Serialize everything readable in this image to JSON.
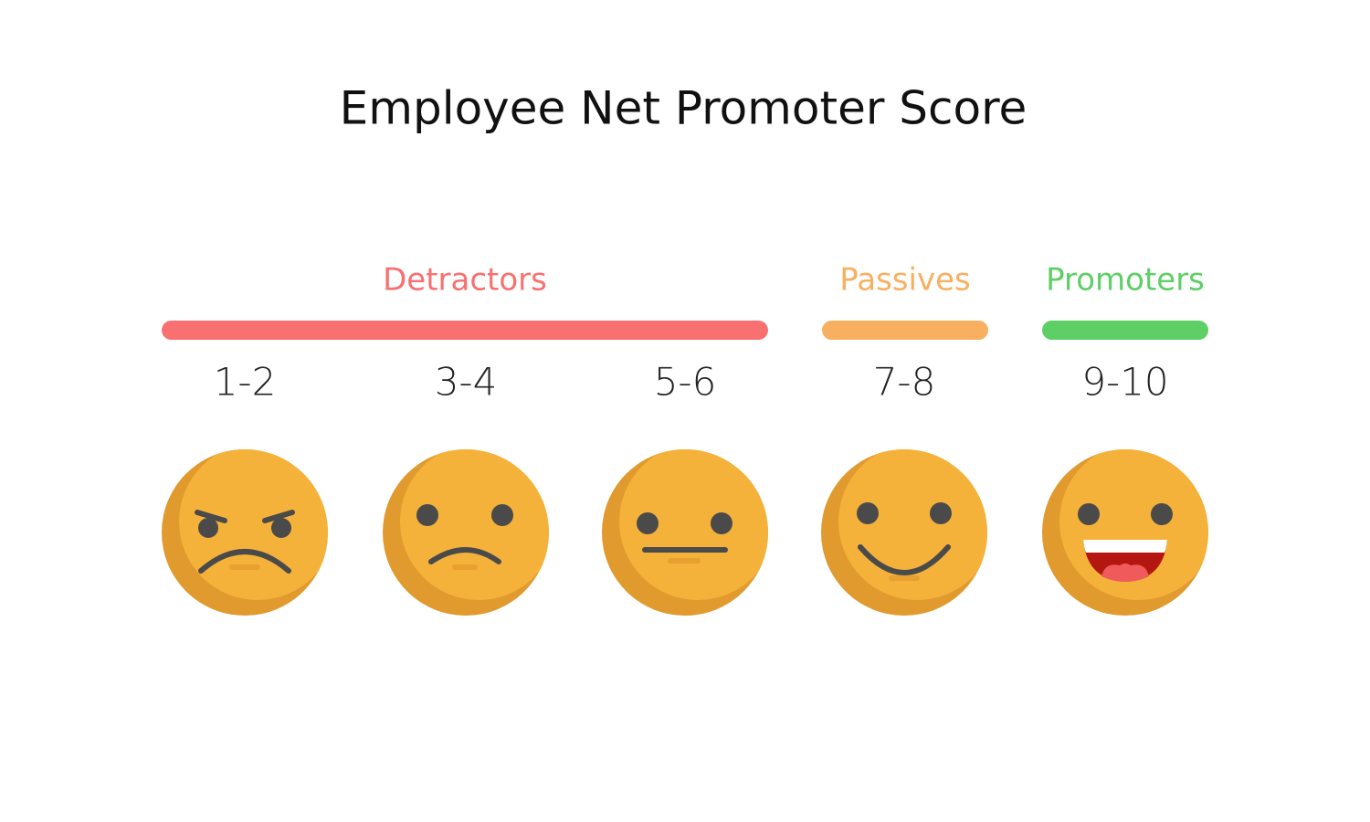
{
  "title": "Employee Net Promoter Score",
  "groups": [
    {
      "label": "Detractors"
    },
    {
      "label": "Passives"
    },
    {
      "label": "Promoters"
    }
  ],
  "scores": [
    "1-2",
    "3-4",
    "5-6",
    "7-8",
    "9-10"
  ]
}
